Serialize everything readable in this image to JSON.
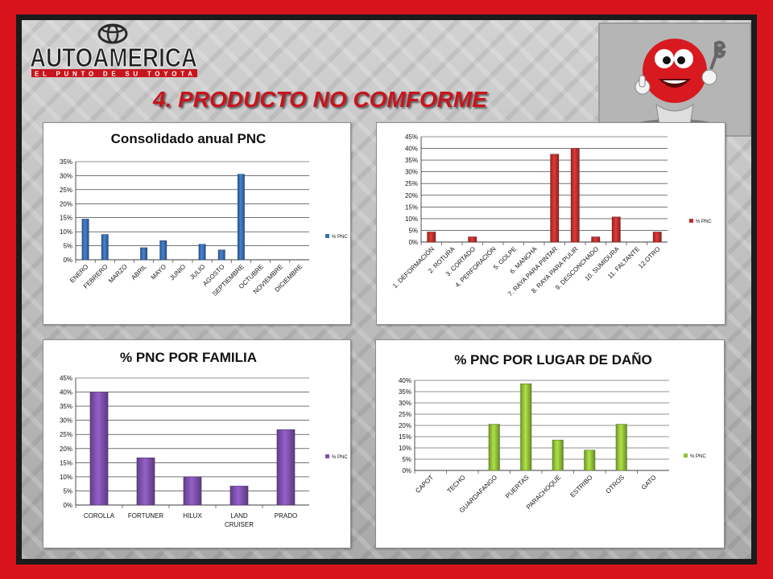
{
  "brand": {
    "name": "AUTOAMERICA",
    "tagline": "EL PUNTO DE SU TOYOTA"
  },
  "slide": {
    "title": "4. PRODUCTO NO COMFORME"
  },
  "colors": {
    "frame": "#d7141c",
    "title": "#c8141c",
    "chart1": "#3b6fb5",
    "chart2": "#c0302e",
    "chart3": "#7e51ad",
    "chart4": "#93c13a"
  },
  "chart_data": [
    {
      "type": "bar",
      "title": "Consolidado anual PNC",
      "categories": [
        "ENERO",
        "FEBRERO",
        "MARZO",
        "ABRIL",
        "MAYO",
        "JUNIO",
        "JULIO",
        "AGOSTO",
        "SEPTIEMBRE",
        "OCTUBRE",
        "NOVIEMBRE",
        "DICIEMBRE"
      ],
      "series": [
        {
          "name": "% PNC",
          "values": [
            14.5,
            9,
            0,
            4.3,
            6.8,
            0,
            5.5,
            3.5,
            30.5,
            0,
            0,
            0
          ]
        }
      ],
      "ylim": [
        0,
        35
      ],
      "yticks": [
        "0%",
        "5%",
        "10%",
        "15%",
        "20%",
        "25%",
        "30%",
        "35%"
      ],
      "legend": "right",
      "grid": true
    },
    {
      "type": "bar",
      "title": "",
      "categories": [
        "1. DEFORMACIÓN",
        "2. ROTURA",
        "3. CORTADO",
        "4. PERFORACIÓN",
        "5. GOLPE",
        "6. MANCHA",
        "7. RAYA PARA PINTAR",
        "8. RAYA PARA PULIR",
        "9. DESCONCHADO",
        "10. SUMIDURA",
        "11. FALTANTE",
        "12.OTRO"
      ],
      "series": [
        {
          "name": "% PNC",
          "values": [
            4.3,
            0,
            2.2,
            0,
            0,
            0,
            37.5,
            40,
            2.2,
            10.7,
            0,
            4.3
          ]
        }
      ],
      "ylim": [
        0,
        45
      ],
      "yticks": [
        "0%",
        "5%",
        "10%",
        "15%",
        "20%",
        "25%",
        "30%",
        "35%",
        "40%",
        "45%"
      ],
      "legend": "right",
      "grid": true
    },
    {
      "type": "bar",
      "title": "% PNC POR FAMILIA",
      "categories": [
        "COROLLA",
        "FORTUNER",
        "HILUX",
        "LAND CRUISER",
        "PRADO"
      ],
      "series": [
        {
          "name": "% PNC",
          "values": [
            40,
            16.7,
            10,
            6.7,
            26.7
          ]
        }
      ],
      "ylim": [
        0,
        45
      ],
      "yticks": [
        "0%",
        "5%",
        "10%",
        "15%",
        "20%",
        "25%",
        "30%",
        "35%",
        "40%",
        "45%"
      ],
      "legend": "right",
      "grid": true
    },
    {
      "type": "bar",
      "title": "% PNC POR LUGAR DE DAÑO",
      "categories": [
        "CAPOT",
        "TECHO",
        "GUARDAFANGO",
        "PUERTAS",
        "PARACHOQUE",
        "ESTRIBO",
        "OTROS",
        "GATO"
      ],
      "series": [
        {
          "name": "% PNC",
          "values": [
            0,
            0,
            20.5,
            38.5,
            13.5,
            9,
            20.5,
            0
          ]
        }
      ],
      "ylim": [
        0,
        40
      ],
      "yticks": [
        "0%",
        "5%",
        "10%",
        "15%",
        "20%",
        "25%",
        "30%",
        "35%",
        "40%"
      ],
      "legend": "right",
      "grid": true
    }
  ]
}
